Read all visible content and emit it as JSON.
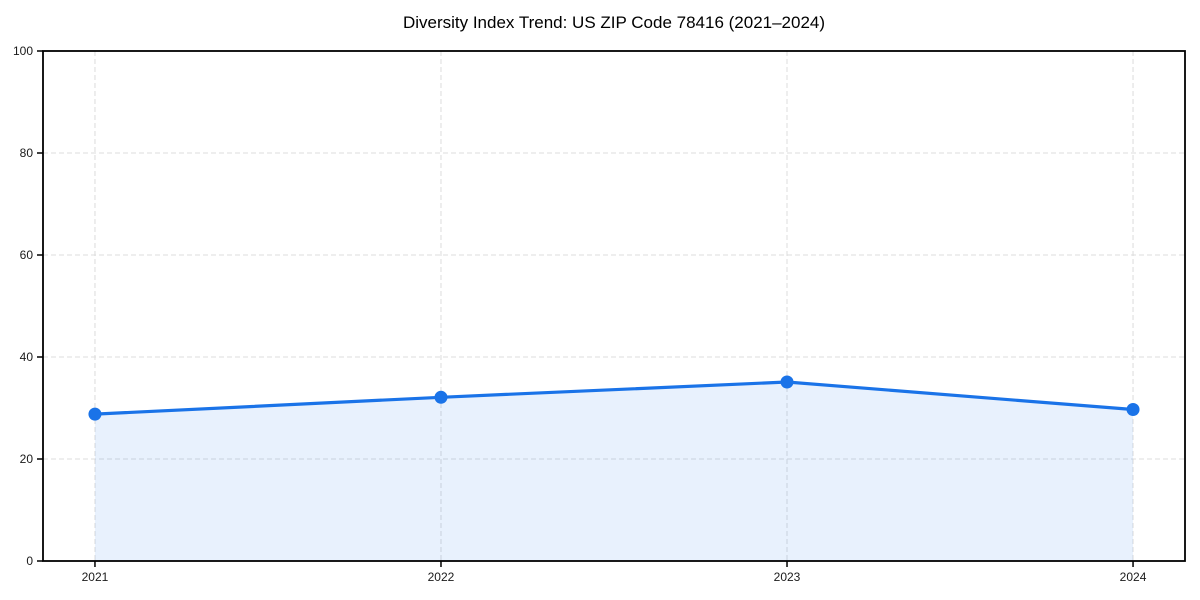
{
  "page": {
    "background": "#ffffff"
  },
  "chart_data": {
    "type": "area",
    "title": "Diversity Index Trend: US ZIP Code 78416 (2021–2024)",
    "categories": [
      "2021",
      "2022",
      "2023",
      "2024"
    ],
    "series": [
      {
        "name": "Diversity Index",
        "values": [
          28.8,
          32.1,
          35.1,
          29.7
        ]
      }
    ],
    "xlabel": "",
    "ylabel": "",
    "ylim": [
      0,
      100
    ],
    "yticks": [
      0,
      20,
      40,
      60,
      80,
      100
    ],
    "grid": true,
    "grid_style": "dashed",
    "legend_position": "none",
    "line_color": "#1a73e8",
    "marker": "circle",
    "fill_color": "#1a73e8",
    "fill_opacity": 0.1,
    "grid_color": "#dcdcdc",
    "axis_color": "#000000",
    "text_color": "#1a1a1a"
  }
}
